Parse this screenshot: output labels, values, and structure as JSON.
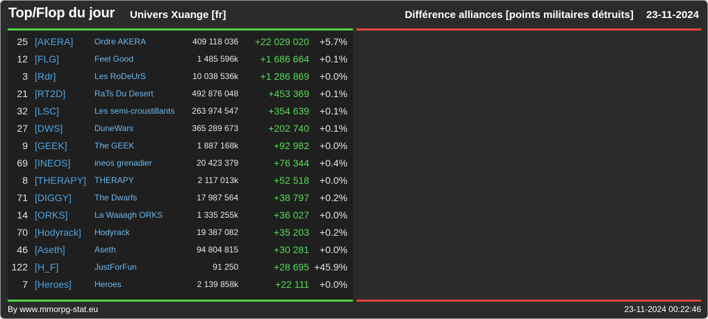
{
  "header": {
    "title": "Top/Flop du jour",
    "subtitle": "Univers Xuange [fr]",
    "right_title": "Différence alliances [points militaires détruits]",
    "date": "23-11-2024"
  },
  "colors": {
    "top_accent": "#4fd14a",
    "flop_accent": "#e0463e",
    "tag_color": "#4ea3e0",
    "positive_diff": "#55dd55"
  },
  "top_rows": [
    {
      "rank": "25",
      "tag": "[AKERA]",
      "name": "Ordre AKERA",
      "points": "409 118 036",
      "diff": "+22 029 020",
      "pct": "+5.7%"
    },
    {
      "rank": "12",
      "tag": "[FLG]",
      "name": "Feel Good",
      "points": "1 485 596k",
      "diff": "+1 686 664",
      "pct": "+0.1%"
    },
    {
      "rank": "3",
      "tag": "[Rdr]",
      "name": "Les RoDeUrS",
      "points": "10 038 536k",
      "diff": "+1 286 869",
      "pct": "+0.0%"
    },
    {
      "rank": "21",
      "tag": "[RT2D]",
      "name": "RaTs Du Desert",
      "points": "492 876 048",
      "diff": "+453 369",
      "pct": "+0.1%"
    },
    {
      "rank": "32",
      "tag": "[LSC]",
      "name": "Les semi-croustillants",
      "points": "263 974 547",
      "diff": "+354 639",
      "pct": "+0.1%"
    },
    {
      "rank": "27",
      "tag": "[DWS]",
      "name": "DuneWars",
      "points": "365 289 673",
      "diff": "+202 740",
      "pct": "+0.1%"
    },
    {
      "rank": "9",
      "tag": "[GEEK]",
      "name": "The GEEK",
      "points": "1 887 168k",
      "diff": "+92 982",
      "pct": "+0.0%"
    },
    {
      "rank": "69",
      "tag": "[INEOS]",
      "name": "ineos grenadier",
      "points": "20 423 379",
      "diff": "+76 344",
      "pct": "+0.4%"
    },
    {
      "rank": "8",
      "tag": "[THERAPY]",
      "name": "THERAPY",
      "points": "2 117 013k",
      "diff": "+52 518",
      "pct": "+0.0%"
    },
    {
      "rank": "71",
      "tag": "[DIGGY]",
      "name": "The Dwarfs",
      "points": "17 987 564",
      "diff": "+38 797",
      "pct": "+0.2%"
    },
    {
      "rank": "14",
      "tag": "[ORKS]",
      "name": "La Waaagh ORKS",
      "points": "1 335 255k",
      "diff": "+36 027",
      "pct": "+0.0%"
    },
    {
      "rank": "70",
      "tag": "[Hodyrack]",
      "name": "Hodyrack",
      "points": "19 387 082",
      "diff": "+35 203",
      "pct": "+0.2%"
    },
    {
      "rank": "46",
      "tag": "[Aseth]",
      "name": "Aseth",
      "points": "94 804 815",
      "diff": "+30 281",
      "pct": "+0.0%"
    },
    {
      "rank": "122",
      "tag": "[H_F]",
      "name": "JustForFun",
      "points": "91 250",
      "diff": "+28 695",
      "pct": "+45.9%"
    },
    {
      "rank": "7",
      "tag": "[Heroes]",
      "name": "Heroes",
      "points": "2 139 858k",
      "diff": "+22 111",
      "pct": "+0.0%"
    }
  ],
  "footer": {
    "source": "By www.mmorpg-stat.eu",
    "timestamp": "23-11-2024 00:22:46"
  }
}
